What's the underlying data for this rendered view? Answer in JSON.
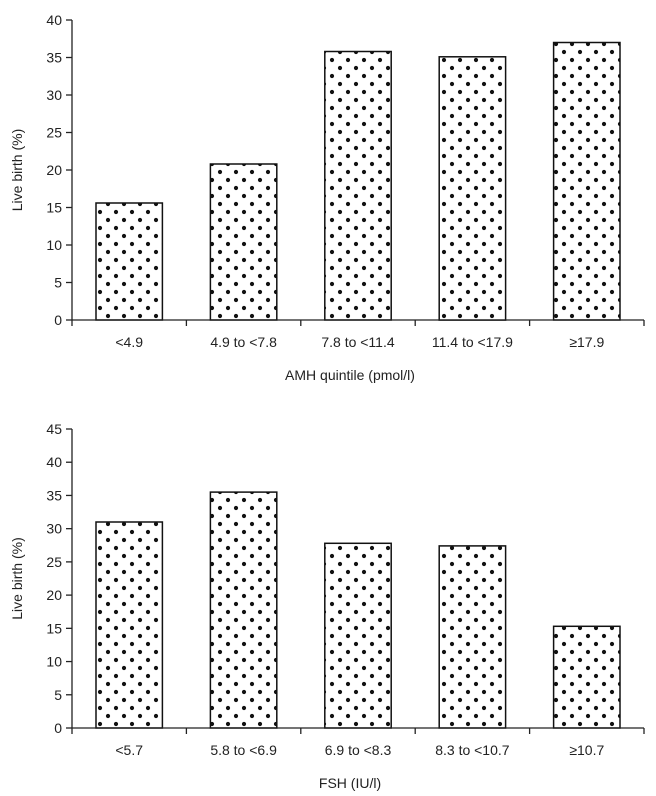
{
  "chart_data": [
    {
      "type": "bar",
      "categories": [
        "<4.9",
        "4.9 to <7.8",
        "7.8 to <11.4",
        "11.4 to <17.9",
        "≥17.9"
      ],
      "values": [
        15.6,
        20.8,
        35.8,
        35.1,
        37.0
      ],
      "xlabel": "AMH quintile (pmol/l)",
      "ylabel": "Live birth (%)",
      "ylim": [
        0,
        40
      ],
      "yticks": [
        0,
        5,
        10,
        15,
        20,
        25,
        30,
        35,
        40
      ],
      "fill": "dotted pattern",
      "grid": false
    },
    {
      "type": "bar",
      "categories": [
        "<5.7",
        "5.8 to <6.9",
        "6.9 to <8.3",
        "8.3 to <10.7",
        "≥10.7"
      ],
      "values": [
        31.0,
        35.5,
        27.8,
        27.4,
        15.3
      ],
      "xlabel": "FSH (IU/l)",
      "ylabel": "Live birth (%)",
      "ylim": [
        0,
        45
      ],
      "yticks": [
        0,
        5,
        10,
        15,
        20,
        25,
        30,
        35,
        40,
        45
      ],
      "fill": "dotted pattern",
      "grid": false
    }
  ],
  "colors": {
    "bar_fill": "#ffffff",
    "dot": "#111111",
    "axis": "#222222"
  }
}
